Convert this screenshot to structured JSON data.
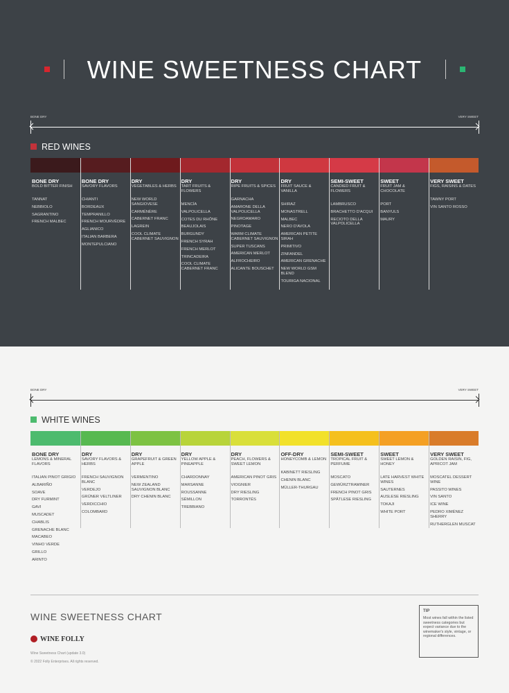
{
  "title": "WINE SWEETNESS CHART",
  "red": {
    "scale_start": "BONE DRY",
    "scale_end": "VERY SWEET",
    "title": "RED WINES",
    "columns": [
      {
        "color": "#3b1a1c",
        "level": "BONE DRY",
        "flavor": "BOLD BITTER FINISH",
        "wines": [
          "TANNAT",
          "NEBBIOLO",
          "SAGRANTINO",
          "FRENCH MALBEC"
        ]
      },
      {
        "color": "#561c1f",
        "level": "BONE DRY",
        "flavor": "SAVORY FLAVORS",
        "wines": [
          "CHIANTI",
          "BORDEAUX",
          "TEMPRANILLO",
          "FRENCH MOURVÈDRE",
          "AGLIANICO",
          "ITALIAN BARBERA",
          "MONTEPULCIANO"
        ]
      },
      {
        "color": "#6e1a1d",
        "level": "DRY",
        "flavor": "VEGETABLES & HERBS",
        "wines": [
          "NEW WORLD SANGIOVESE",
          "CARMÉNÈRE",
          "CABERNET FRANC",
          "LAGREIN",
          "COOL CLIMATE CABERNET SAUVIGNON"
        ]
      },
      {
        "color": "#a3282e",
        "level": "DRY",
        "flavor": "TART FRUITS & FLOWERS",
        "wines": [
          "MENCÍA",
          "VALPOLICELLA",
          "COTES DU RHÔNE",
          "BEAUJOLAIS",
          "BURGUNDY",
          "FRENCH SYRAH",
          "FRENCH MERLOT",
          "TRINCADEIRA",
          "COOL CLIMATE CABERNET FRANC"
        ]
      },
      {
        "color": "#c2323a",
        "level": "DRY",
        "flavor": "RIPE FRUITS & SPICES",
        "wines": [
          "GARNACHA",
          "AMARONE DELLA VALPOLICELLA",
          "NEGROAMARO",
          "PINOTAGE",
          "WARM CLIMATE CABERNET SAUVIGNON",
          "SUPER TUSCANS",
          "AMERICAN MERLOT",
          "ALFROCHEIRO",
          "ALICANTE BOUSCHET"
        ]
      },
      {
        "color": "#cf3840",
        "level": "DRY",
        "flavor": "FRUIT SAUCE & VANILLA",
        "wines": [
          "SHIRAZ",
          "MONASTRELL",
          "MALBEC",
          "NERO D'AVOLA",
          "AMERICAN PETITE SIRAH",
          "PRIMITIVO",
          "ZINFANDEL",
          "AMERICAN GRENACHE",
          "NEW WORLD GSM BLEND",
          "TOURIGA NACIONAL"
        ]
      },
      {
        "color": "#d53a47",
        "level": "SEMI-SWEET",
        "flavor": "CANDIED FRUIT & FLOWERS",
        "wines": [
          "LAMBRUSCO",
          "BRACHETTO D'ACQUI",
          "RECIOTO DELLA VALPOLICELLA"
        ]
      },
      {
        "color": "#c3364b",
        "level": "SWEET",
        "flavor": "FRUIT JAM & CHOCOLATE",
        "wines": [
          "PORT",
          "BANYULS",
          "MAURY"
        ]
      },
      {
        "color": "#c45a2c",
        "level": "VERY SWEET",
        "flavor": "FIGS, RAISINS & DATES",
        "wines": [
          "TAWNY PORT",
          "VIN SANTO ROSSO"
        ]
      }
    ]
  },
  "white": {
    "scale_start": "BONE DRY",
    "scale_end": "VERY SWEET",
    "title": "WHITE WINES",
    "columns": [
      {
        "color": "#4dbb6e",
        "level": "BONE DRY",
        "flavor": "LEMONS & MINERAL FLAVORS",
        "wines": [
          "ITALIAN PINOT GRIGIO",
          "ALBARIÑO",
          "SOAVE",
          "DRY FURMINT",
          "GAVI",
          "MUSCADET",
          "CHABLIS",
          "GRENACHE BLANC",
          "MACABEO",
          "VINHO VERDE",
          "GRILLO",
          "ARINTO"
        ]
      },
      {
        "color": "#57b950",
        "level": "DRY",
        "flavor": "SAVORY FLAVORS & HERBS",
        "wines": [
          "FRENCH SAUVIGNON BLANC",
          "VERDEJO",
          "GRÜNER VELTLINER",
          "VERDICCHIO",
          "COLOMBARD"
        ]
      },
      {
        "color": "#7dc242",
        "level": "DRY",
        "flavor": "GRAPEFRUIT & GREEN APPLE",
        "wines": [
          "VERMENTINO",
          "NEW ZEALAND SAUVIGNON BLANC",
          "DRY CHENIN BLANC"
        ]
      },
      {
        "color": "#b8d43a",
        "level": "DRY",
        "flavor": "YELLOW APPLE & PINEAPPLE",
        "wines": [
          "CHARDONNAY",
          "MARSANNE",
          "ROUSSANNE",
          "SÉMILLON",
          "TREBBIANO"
        ]
      },
      {
        "color": "#d9df3a",
        "level": "DRY",
        "flavor": "PEACH, FLOWERS & SWEET LEMON",
        "wines": [
          "AMERICAN PINOT GRIS",
          "VIOGNIER",
          "DRY RIESLING",
          "TORRONTÉS"
        ]
      },
      {
        "color": "#f2e12a",
        "level": "OFF-DRY",
        "flavor": "HONEYCOMB & LEMON",
        "wines": [
          "KABINETT RIESLING",
          "CHENIN BLANC",
          "MÜLLER-THURGAU"
        ]
      },
      {
        "color": "#f5c01d",
        "level": "SEMI-SWEET",
        "flavor": "TROPICAL FRUIT & PERFUME",
        "wines": [
          "MOSCATO",
          "GEWÜRZTRAMINER",
          "FRENCH PINOT GRIS",
          "SPÄTLESE RIESLING"
        ]
      },
      {
        "color": "#f4a024",
        "level": "SWEET",
        "flavor": "SWEET LEMON & HONEY",
        "wines": [
          "LATE HARVEST WHITE WINES",
          "SAUTERNES",
          "AUSLESE RIESLING",
          "TOKAJI",
          "WHITE PORT"
        ]
      },
      {
        "color": "#d97c2a",
        "level": "VERY SWEET",
        "flavor": "GOLDEN RAISIN, FIG, APRICOT JAM",
        "wines": [
          "MOSCATEL DESSERT WINE",
          "PASSITO WINES",
          "VIN SANTO",
          "ICE WINE",
          "PEDRO XIMÉNEZ SHERRY",
          "RUTHERGLEN MUSCAT"
        ]
      }
    ]
  },
  "footer": {
    "title": "WINE SWEETNESS CHART",
    "brand": "WINE FOLLY",
    "credit": "Wine Sweetness Chart (update 3.0)",
    "copyright": "© 2022 Folly Enterprises. All rights reserved.",
    "tip": {
      "title": "TIP",
      "text": "Most wines fall within the listed sweetness categories but expect variance due to the winemaker's style, vintage, or regional differences."
    }
  }
}
